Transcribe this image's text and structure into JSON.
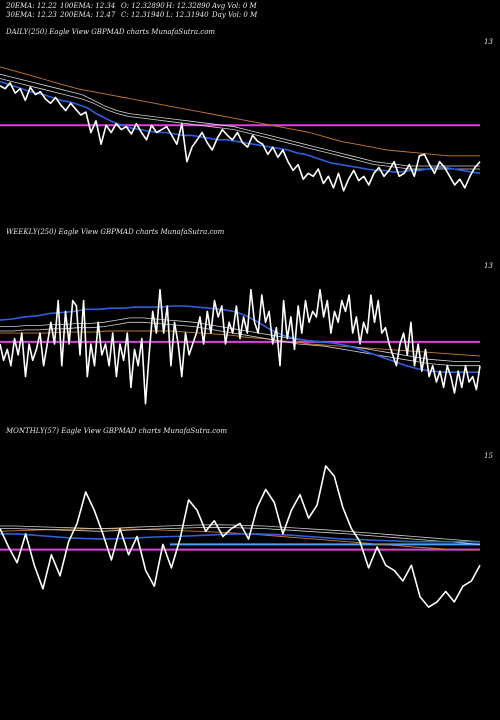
{
  "header": {
    "ema20": "20EMA: 12.22",
    "ema100": "100EMA: 12.34",
    "open": "O: 12.32890",
    "high": "H: 12.32890",
    "avgvol": "Avg Vol: 0  M",
    "ema30": "30EMA: 12.23",
    "ema200": "200EMA: 12.47",
    "close": "C: 12.31940",
    "low": "L: 12.31940",
    "dayvol": "Day Vol: 0  M"
  },
  "colors": {
    "background": "#000000",
    "price": "#ffffff",
    "ema_fast": "#2f5fe0",
    "ema_band": "#cfcfcf",
    "ema_slow": "#c8792a",
    "support": "#e040e0",
    "monthly_level": "#4aa0ff"
  },
  "chart_data": [
    {
      "type": "line",
      "panel": "DAILY",
      "label": "DAILY(250) Eagle  View  GBPMAD charts MunafaSutra.com",
      "axis_tick": "13",
      "y_min": 11.9,
      "y_max": 13.1,
      "support_level": 12.55,
      "series": [
        {
          "role": "price",
          "values": [
            12.82,
            12.8,
            12.84,
            12.77,
            12.8,
            12.72,
            12.81,
            12.76,
            12.78,
            12.73,
            12.7,
            12.74,
            12.69,
            12.65,
            12.7,
            12.66,
            12.62,
            12.64,
            12.5,
            12.58,
            12.42,
            12.55,
            12.5,
            12.56,
            12.52,
            12.54,
            12.49,
            12.56,
            12.5,
            12.45,
            12.55,
            12.5,
            12.52,
            12.54,
            12.48,
            12.42,
            12.56,
            12.3,
            12.4,
            12.45,
            12.5,
            12.43,
            12.38,
            12.46,
            12.52,
            12.48,
            12.45,
            12.5,
            12.43,
            12.4,
            12.48,
            12.44,
            12.42,
            12.35,
            12.4,
            12.33,
            12.38,
            12.3,
            12.24,
            12.28,
            12.18,
            12.22,
            12.2,
            12.25,
            12.15,
            12.2,
            12.12,
            12.22,
            12.1,
            12.18,
            12.24,
            12.17,
            12.2,
            12.14,
            12.22,
            12.26,
            12.2,
            12.24,
            12.3,
            12.2,
            12.22,
            12.28,
            12.2,
            12.34,
            12.35,
            12.28,
            12.22,
            12.3,
            12.26,
            12.2,
            12.14,
            12.18,
            12.12,
            12.2,
            12.26,
            12.3
          ]
        },
        {
          "role": "ema_fast",
          "values": [
            12.85,
            12.83,
            12.81,
            12.79,
            12.77,
            12.76,
            12.74,
            12.72,
            12.71,
            12.69,
            12.67,
            12.63,
            12.6,
            12.57,
            12.55,
            12.53,
            12.52,
            12.51,
            12.5,
            12.5,
            12.49,
            12.48,
            12.48,
            12.47,
            12.46,
            12.45,
            12.45,
            12.44,
            12.43,
            12.42,
            12.41,
            12.4,
            12.39,
            12.38,
            12.36,
            12.35,
            12.33,
            12.31,
            12.29,
            12.28,
            12.27,
            12.26,
            12.25,
            12.24,
            12.24,
            12.23,
            12.23,
            12.24,
            12.24,
            12.25,
            12.26,
            12.26,
            12.25,
            12.24,
            12.23,
            12.22
          ]
        },
        {
          "role": "ema_band_upper",
          "values": [
            12.9,
            12.88,
            12.86,
            12.84,
            12.82,
            12.8,
            12.78,
            12.76,
            12.72,
            12.68,
            12.65,
            12.63,
            12.62,
            12.61,
            12.6,
            12.59,
            12.58,
            12.57,
            12.56,
            12.55,
            12.54,
            12.52,
            12.5,
            12.48,
            12.46,
            12.44,
            12.42,
            12.4,
            12.38,
            12.36,
            12.34,
            12.32,
            12.3,
            12.29,
            12.28,
            12.27,
            12.27,
            12.27,
            12.27,
            12.27,
            12.27,
            12.27
          ]
        },
        {
          "role": "ema_band_lower",
          "values": [
            12.87,
            12.85,
            12.83,
            12.81,
            12.79,
            12.77,
            12.75,
            12.73,
            12.7,
            12.66,
            12.63,
            12.61,
            12.6,
            12.59,
            12.58,
            12.57,
            12.56,
            12.55,
            12.54,
            12.53,
            12.52,
            12.5,
            12.48,
            12.46,
            12.44,
            12.42,
            12.4,
            12.38,
            12.36,
            12.34,
            12.32,
            12.3,
            12.28,
            12.27,
            12.26,
            12.25,
            12.25,
            12.25,
            12.25,
            12.25,
            12.25,
            12.25
          ]
        },
        {
          "role": "ema_slow",
          "values": [
            12.95,
            12.92,
            12.89,
            12.86,
            12.83,
            12.8,
            12.78,
            12.76,
            12.74,
            12.72,
            12.7,
            12.68,
            12.66,
            12.64,
            12.62,
            12.6,
            12.58,
            12.56,
            12.54,
            12.52,
            12.5,
            12.47,
            12.44,
            12.42,
            12.4,
            12.38,
            12.37,
            12.36,
            12.35,
            12.34,
            12.34,
            12.34
          ]
        }
      ]
    },
    {
      "type": "line",
      "panel": "WEEKLY",
      "label": "WEEKLY(250) Eagle  View  GBPMAD charts MunafaSutra.com",
      "axis_tick": "13",
      "y_min": 11.8,
      "y_max": 13.2,
      "support_level": 12.52,
      "series": [
        {
          "role": "price",
          "values": [
            12.5,
            12.35,
            12.45,
            12.3,
            12.55,
            12.4,
            12.6,
            12.2,
            12.5,
            12.35,
            12.45,
            12.6,
            12.3,
            12.5,
            12.7,
            12.5,
            12.9,
            12.3,
            12.8,
            12.5,
            12.9,
            12.85,
            12.4,
            12.9,
            12.2,
            12.5,
            12.3,
            12.7,
            12.4,
            12.5,
            12.3,
            12.6,
            12.2,
            12.5,
            12.35,
            12.6,
            12.1,
            12.45,
            12.3,
            12.55,
            11.95,
            12.4,
            12.8,
            12.6,
            13.0,
            12.6,
            12.85,
            12.3,
            12.7,
            12.5,
            12.2,
            12.6,
            12.4,
            12.5,
            12.6,
            12.75,
            12.5,
            12.8,
            12.6,
            12.9,
            12.75,
            12.85,
            12.5,
            12.7,
            12.6,
            12.85,
            12.55,
            12.75,
            12.6,
            13.0,
            12.7,
            12.6,
            12.95,
            12.7,
            12.8,
            12.5,
            12.65,
            12.3,
            12.9,
            12.55,
            12.75,
            12.45,
            12.85,
            12.6,
            12.9,
            12.7,
            12.8,
            12.75,
            13.0,
            12.75,
            12.9,
            12.6,
            12.8,
            12.7,
            12.9,
            12.8,
            12.95,
            12.6,
            12.75,
            12.5,
            12.7,
            12.6,
            12.95,
            12.7,
            12.9,
            12.6,
            12.65,
            12.5,
            12.4,
            12.3,
            12.5,
            12.6,
            12.4,
            12.7,
            12.3,
            12.5,
            12.25,
            12.45,
            12.2,
            12.3,
            12.15,
            12.25,
            12.1,
            12.3,
            12.2,
            12.05,
            12.25,
            12.1,
            12.3,
            12.15,
            12.2,
            12.08,
            12.3
          ]
        },
        {
          "role": "ema_fast",
          "values": [
            12.72,
            12.73,
            12.75,
            12.76,
            12.78,
            12.79,
            12.8,
            12.82,
            12.82,
            12.83,
            12.83,
            12.84,
            12.84,
            12.84,
            12.85,
            12.85,
            12.84,
            12.83,
            12.82,
            12.8,
            12.76,
            12.7,
            12.63,
            12.58,
            12.55,
            12.53,
            12.52,
            12.51,
            12.49,
            12.46,
            12.42,
            12.38,
            12.34,
            12.3,
            12.27,
            12.25,
            12.24,
            12.24,
            12.24,
            12.24
          ]
        },
        {
          "role": "ema_band_upper",
          "values": [
            12.66,
            12.66,
            12.67,
            12.67,
            12.68,
            12.68,
            12.69,
            12.69,
            12.7,
            12.72,
            12.74,
            12.74,
            12.73,
            12.72,
            12.71,
            12.7,
            12.68,
            12.66,
            12.64,
            12.62,
            12.6,
            12.58,
            12.56,
            12.54,
            12.53,
            12.52,
            12.5,
            12.48,
            12.46,
            12.44,
            12.42,
            12.4,
            12.38,
            12.36,
            12.35,
            12.34,
            12.34,
            12.34
          ]
        },
        {
          "role": "ema_band_lower",
          "values": [
            12.62,
            12.62,
            12.63,
            12.63,
            12.64,
            12.64,
            12.65,
            12.65,
            12.66,
            12.68,
            12.7,
            12.7,
            12.69,
            12.68,
            12.67,
            12.66,
            12.64,
            12.62,
            12.6,
            12.58,
            12.56,
            12.54,
            12.52,
            12.5,
            12.49,
            12.48,
            12.46,
            12.44,
            12.42,
            12.4,
            12.38,
            12.36,
            12.34,
            12.32,
            12.31,
            12.3,
            12.3,
            12.3
          ]
        },
        {
          "role": "ema_slow",
          "values": [
            12.6,
            12.6,
            12.6,
            12.6,
            12.61,
            12.61,
            12.61,
            12.62,
            12.62,
            12.62,
            12.62,
            12.62,
            12.61,
            12.6,
            12.59,
            12.58,
            12.56,
            12.55,
            12.53,
            12.52,
            12.5,
            12.49,
            12.48,
            12.47,
            12.46,
            12.45,
            12.44,
            12.43,
            12.42,
            12.41,
            12.4,
            12.39
          ]
        }
      ]
    },
    {
      "type": "line",
      "panel": "MONTHLY",
      "label": "MONTHLY(57) Eagle  View  GBPMAD charts MunafaSutra.com",
      "axis_tick": "15",
      "y_min": 9.5,
      "y_max": 15.5,
      "support_level": 12.0,
      "blue_level": 12.2,
      "series": [
        {
          "role": "price",
          "values": [
            12.8,
            12.1,
            11.5,
            12.6,
            11.4,
            10.5,
            11.8,
            11.0,
            12.3,
            13.0,
            14.2,
            13.5,
            12.6,
            11.6,
            12.8,
            11.8,
            12.5,
            11.2,
            10.6,
            12.2,
            11.3,
            12.4,
            13.9,
            13.5,
            12.7,
            13.1,
            12.5,
            12.8,
            13.0,
            12.4,
            13.6,
            14.3,
            13.8,
            12.6,
            13.5,
            14.1,
            13.2,
            13.7,
            15.2,
            14.8,
            13.6,
            12.8,
            12.3,
            11.3,
            12.1,
            11.4,
            11.2,
            10.8,
            11.4,
            10.2,
            9.8,
            10.0,
            10.4,
            10.0,
            10.6,
            10.8,
            11.4
          ]
        },
        {
          "role": "ema_fast",
          "values": [
            12.6,
            12.6,
            12.55,
            12.5,
            12.45,
            12.42,
            12.4,
            12.42,
            12.45,
            12.48,
            12.5,
            12.52,
            12.55,
            12.58,
            12.6,
            12.6,
            12.58,
            12.55,
            12.5,
            12.45,
            12.4,
            12.38,
            12.35,
            12.33,
            12.3,
            12.3,
            12.3,
            12.3,
            12.3
          ]
        },
        {
          "role": "ema_band_upper",
          "values": [
            12.9,
            12.9,
            12.88,
            12.86,
            12.84,
            12.82,
            12.8,
            12.82,
            12.85,
            12.88,
            12.9,
            12.92,
            12.94,
            12.95,
            12.94,
            12.92,
            12.9,
            12.86,
            12.82,
            12.78,
            12.74,
            12.7,
            12.65,
            12.6,
            12.55,
            12.5,
            12.45,
            12.4,
            12.35,
            12.3
          ]
        },
        {
          "role": "ema_band_lower",
          "values": [
            12.8,
            12.8,
            12.78,
            12.76,
            12.74,
            12.72,
            12.7,
            12.72,
            12.75,
            12.78,
            12.8,
            12.82,
            12.84,
            12.85,
            12.84,
            12.82,
            12.8,
            12.76,
            12.72,
            12.68,
            12.64,
            12.6,
            12.55,
            12.5,
            12.45,
            12.4,
            12.35,
            12.3,
            12.25,
            12.2
          ]
        },
        {
          "role": "ema_slow",
          "values": [
            12.7,
            12.72,
            12.74,
            12.76,
            12.78,
            12.79,
            12.8,
            12.79,
            12.78,
            12.76,
            12.74,
            12.72,
            12.7,
            12.67,
            12.64,
            12.6,
            12.55,
            12.5,
            12.45,
            12.4,
            12.35,
            12.3,
            12.25,
            12.2,
            12.15,
            12.1,
            12.06,
            12.02,
            12.0,
            11.98
          ]
        }
      ]
    }
  ]
}
